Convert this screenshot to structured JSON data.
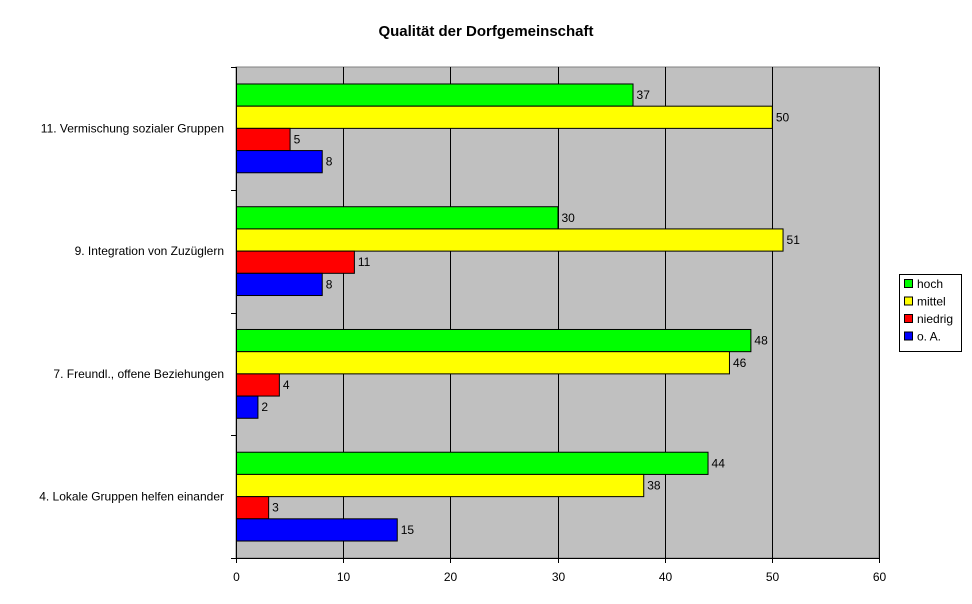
{
  "chart_data": {
    "type": "bar",
    "orientation": "horizontal",
    "title": "Qualität der Dorfgemeinschaft",
    "xlabel": "",
    "ylabel": "",
    "xlim": [
      0,
      60
    ],
    "x_ticks": [
      0,
      10,
      20,
      30,
      40,
      50,
      60
    ],
    "grid": true,
    "plot_background": "#c0c0c0",
    "legend_position": "right",
    "categories": [
      "11. Vermischung sozialer Gruppen",
      "9. Integration von Zuzüglern",
      "7. Freundl., offene Beziehungen",
      "4. Lokale Gruppen helfen einander"
    ],
    "series": [
      {
        "name": "hoch",
        "color": "#00ff00",
        "values": [
          37,
          30,
          48,
          44
        ]
      },
      {
        "name": "mittel",
        "color": "#ffff00",
        "values": [
          50,
          51,
          46,
          38
        ]
      },
      {
        "name": "niedrig",
        "color": "#ff0000",
        "values": [
          5,
          11,
          4,
          3
        ]
      },
      {
        "name": "o. A.",
        "color": "#0000ff",
        "values": [
          8,
          8,
          2,
          15
        ]
      }
    ]
  }
}
